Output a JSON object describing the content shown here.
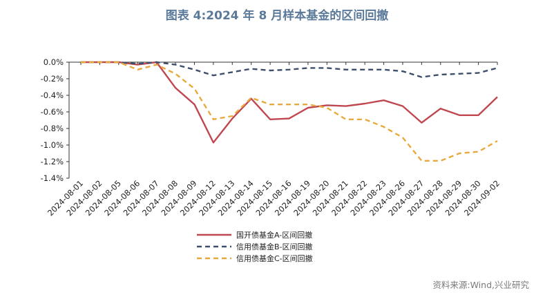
{
  "title": "图表 4:2024 年 8 月样本基金的区间回撤",
  "source": "资料来源:Wind,兴业研究",
  "chart_data": {
    "type": "line",
    "x": [
      "2024-08-01",
      "2024-08-02",
      "2024-08-05",
      "2024-08-06",
      "2024-08-07",
      "2024-08-08",
      "2024-08-09",
      "2024-08-12",
      "2024-08-13",
      "2024-08-14",
      "2024-08-15",
      "2024-08-16",
      "2024-08-19",
      "2024-08-20",
      "2024-08-21",
      "2024-08-22",
      "2024-08-23",
      "2024-08-26",
      "2024-08-27",
      "2024-08-28",
      "2024-08-29",
      "2024-08-30",
      "2024-09-02"
    ],
    "yticks": [
      "0.0%",
      "-0.2%",
      "-0.4%",
      "-0.6%",
      "-0.8%",
      "-1.0%",
      "-1.2%",
      "-1.4%"
    ],
    "ylim": [
      -1.4,
      0
    ],
    "grid": false,
    "legend_position": "bottom",
    "series": [
      {
        "name": "国开债基金A-区间回撤",
        "color": "#c0464f",
        "dash": "solid",
        "values": [
          0,
          0,
          0,
          -0.03,
          0,
          -0.31,
          -0.51,
          -0.97,
          -0.68,
          -0.44,
          -0.69,
          -0.68,
          -0.55,
          -0.52,
          -0.53,
          -0.5,
          -0.46,
          -0.53,
          -0.73,
          -0.56,
          -0.64,
          -0.64,
          -0.42
        ]
      },
      {
        "name": "信用债基金B-区间回撤",
        "color": "#3e4f6b",
        "dash": "dashed",
        "values": [
          0,
          0,
          0,
          -0.02,
          0,
          -0.03,
          -0.09,
          -0.16,
          -0.12,
          -0.08,
          -0.1,
          -0.09,
          -0.07,
          -0.07,
          -0.09,
          -0.09,
          -0.09,
          -0.11,
          -0.18,
          -0.15,
          -0.14,
          -0.13,
          -0.07
        ]
      },
      {
        "name": "信用债基金C-区间回撤",
        "color": "#e8a93c",
        "dash": "dashed",
        "values": [
          0,
          0,
          0,
          -0.09,
          -0.03,
          -0.14,
          -0.32,
          -0.69,
          -0.65,
          -0.43,
          -0.51,
          -0.51,
          -0.51,
          -0.55,
          -0.69,
          -0.69,
          -0.78,
          -0.91,
          -1.19,
          -1.19,
          -1.1,
          -1.08,
          -0.95
        ]
      }
    ]
  }
}
